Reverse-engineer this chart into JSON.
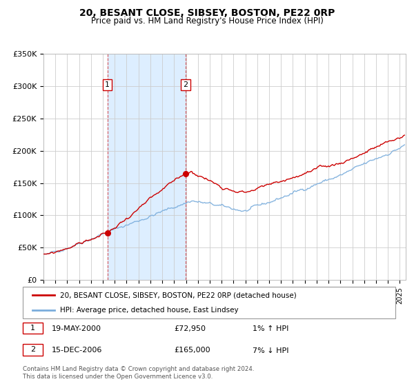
{
  "title": "20, BESANT CLOSE, SIBSEY, BOSTON, PE22 0RP",
  "subtitle": "Price paid vs. HM Land Registry's House Price Index (HPI)",
  "background_color": "#ffffff",
  "grid_color": "#cccccc",
  "sale1_date": 2000.38,
  "sale1_price": 72950,
  "sale2_date": 2006.96,
  "sale2_price": 165000,
  "ylim": [
    0,
    350000
  ],
  "xlim_start": 1995.0,
  "xlim_end": 2025.5,
  "legend_line1": "20, BESANT CLOSE, SIBSEY, BOSTON, PE22 0RP (detached house)",
  "legend_line2": "HPI: Average price, detached house, East Lindsey",
  "table_row1_num": "1",
  "table_row1_date": "19-MAY-2000",
  "table_row1_price": "£72,950",
  "table_row1_hpi": "1% ↑ HPI",
  "table_row2_num": "2",
  "table_row2_date": "15-DEC-2006",
  "table_row2_price": "£165,000",
  "table_row2_hpi": "7% ↓ HPI",
  "footer1": "Contains HM Land Registry data © Crown copyright and database right 2024.",
  "footer2": "This data is licensed under the Open Government Licence v3.0.",
  "property_line_color": "#cc0000",
  "hpi_line_color": "#7aaddc",
  "sale_marker_color": "#cc0000",
  "shade_color": "#ddeeff",
  "ytick_labels": [
    "£0",
    "£50K",
    "£100K",
    "£150K",
    "£200K",
    "£250K",
    "£300K",
    "£350K"
  ],
  "ytick_values": [
    0,
    50000,
    100000,
    150000,
    200000,
    250000,
    300000,
    350000
  ]
}
